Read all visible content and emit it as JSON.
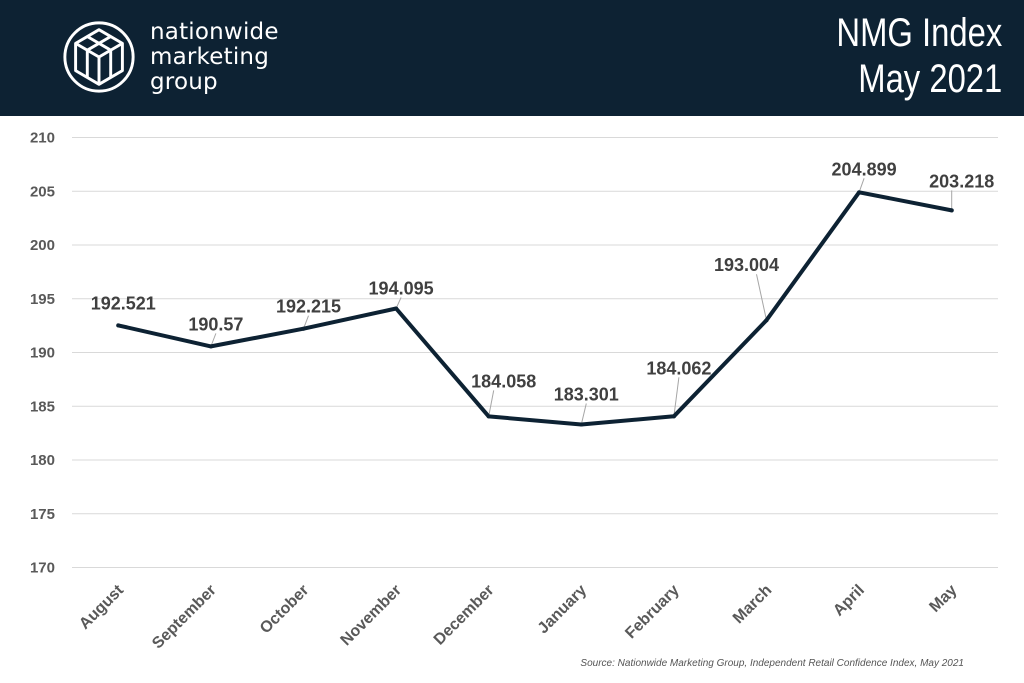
{
  "header": {
    "brand_lines": [
      "nationwide",
      "marketing",
      "group"
    ],
    "title_line1": "NMG Index",
    "title_line2": "May 2021",
    "logo_icon": "cube-hexagon-logo-icon"
  },
  "colors": {
    "header_bg": "#0d2233",
    "line": "#0d2233",
    "grid": "#d9d9d9",
    "label_text": "#404040",
    "tick_text": "#595959"
  },
  "chart_data": {
    "type": "line",
    "categories": [
      "August",
      "September",
      "October",
      "November",
      "December",
      "January",
      "February",
      "March",
      "April",
      "May"
    ],
    "series": [
      {
        "values": [
          192.521,
          190.57,
          192.215,
          194.095,
          184.058,
          183.301,
          184.062,
          193.004,
          204.899,
          203.218
        ],
        "labels": [
          "192.521",
          "190.57",
          "192.215",
          "194.095",
          "184.058",
          "183.301",
          "184.062",
          "193.004",
          "204.899",
          "203.218"
        ]
      }
    ],
    "title": "NMG Index May 2021",
    "xlabel": "",
    "ylabel": "",
    "ylim": [
      170,
      210
    ],
    "yticks": [
      170,
      175,
      180,
      185,
      190,
      195,
      200,
      205,
      210
    ],
    "grid": true,
    "legend": "none"
  },
  "footer": {
    "source": "Source: Nationwide Marketing Group, Independent Retail Confidence Index, May 2021"
  }
}
